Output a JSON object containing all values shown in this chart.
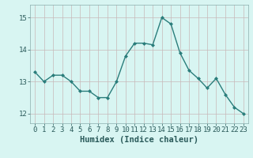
{
  "x": [
    0,
    1,
    2,
    3,
    4,
    5,
    6,
    7,
    8,
    9,
    10,
    11,
    12,
    13,
    14,
    15,
    16,
    17,
    18,
    19,
    20,
    21,
    22,
    23
  ],
  "y": [
    13.3,
    13.0,
    13.2,
    13.2,
    13.0,
    12.7,
    12.7,
    12.5,
    12.5,
    13.0,
    13.8,
    14.2,
    14.2,
    14.15,
    15.0,
    14.8,
    13.9,
    13.35,
    13.1,
    12.8,
    13.1,
    12.6,
    12.2,
    12.0
  ],
  "line_color": "#2a7d7b",
  "marker": "D",
  "marker_size": 2.0,
  "bg_color": "#d8f5f2",
  "grid_color": "#c8b8b8",
  "xlabel": "Humidex (Indice chaleur)",
  "ylim": [
    11.7,
    15.4
  ],
  "xlim": [
    -0.5,
    23.5
  ],
  "yticks": [
    12,
    13,
    14,
    15
  ],
  "xticks": [
    0,
    1,
    2,
    3,
    4,
    5,
    6,
    7,
    8,
    9,
    10,
    11,
    12,
    13,
    14,
    15,
    16,
    17,
    18,
    19,
    20,
    21,
    22,
    23
  ],
  "tick_color": "#2a5a5a",
  "tick_fontsize": 6.5,
  "xlabel_fontsize": 7.5,
  "spine_color": "#8aadad",
  "linewidth": 1.0
}
